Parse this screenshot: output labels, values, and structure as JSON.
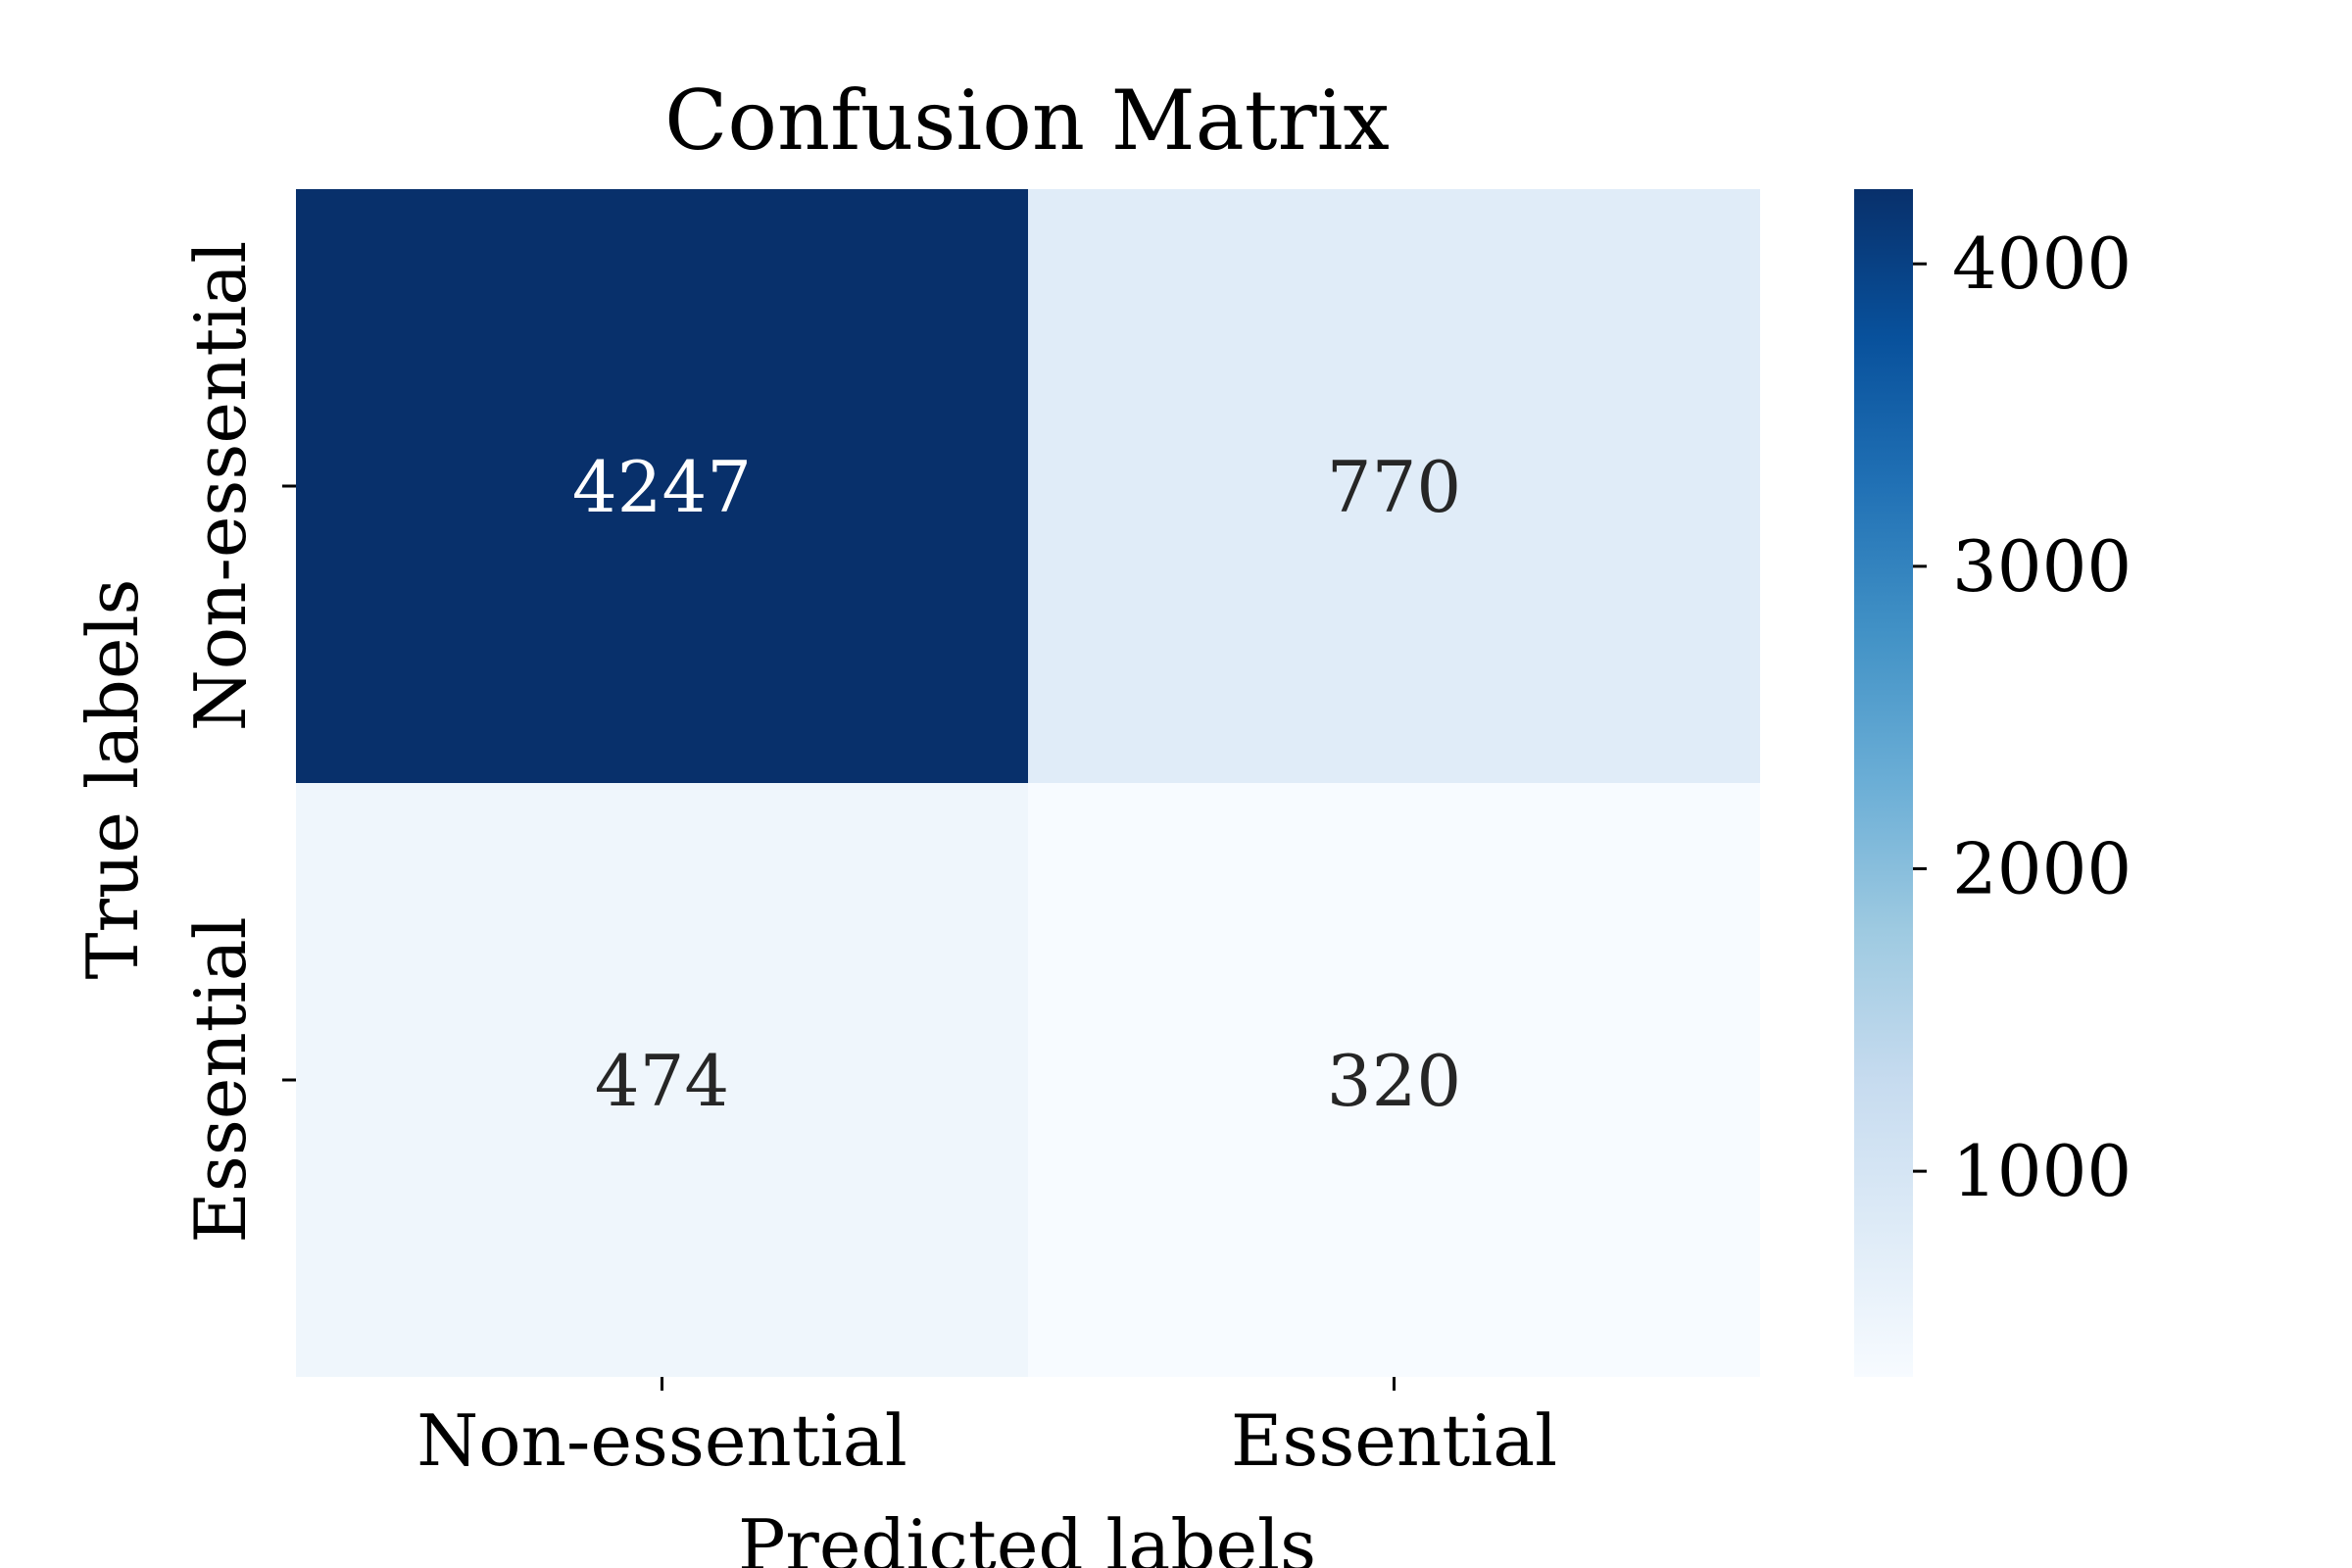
{
  "chart_data": {
    "type": "heatmap",
    "title": "Confusion Matrix",
    "xlabel": "Predicted labels",
    "ylabel": "True labels",
    "x_categories": [
      "Non-essential",
      "Essential"
    ],
    "y_categories": [
      "Non-essential",
      "Essential"
    ],
    "values": [
      [
        4247,
        770
      ],
      [
        474,
        320
      ]
    ],
    "colormap": "Blues",
    "colorbar": {
      "min": 320,
      "max": 4247,
      "ticks": [
        1000,
        2000,
        3000,
        4000
      ],
      "tick_labels": [
        "1000",
        "2000",
        "3000",
        "4000"
      ]
    },
    "colors": {
      "text_on_dark": "#ffffff",
      "text_on_light": "#262626",
      "axis": "#000000"
    }
  }
}
